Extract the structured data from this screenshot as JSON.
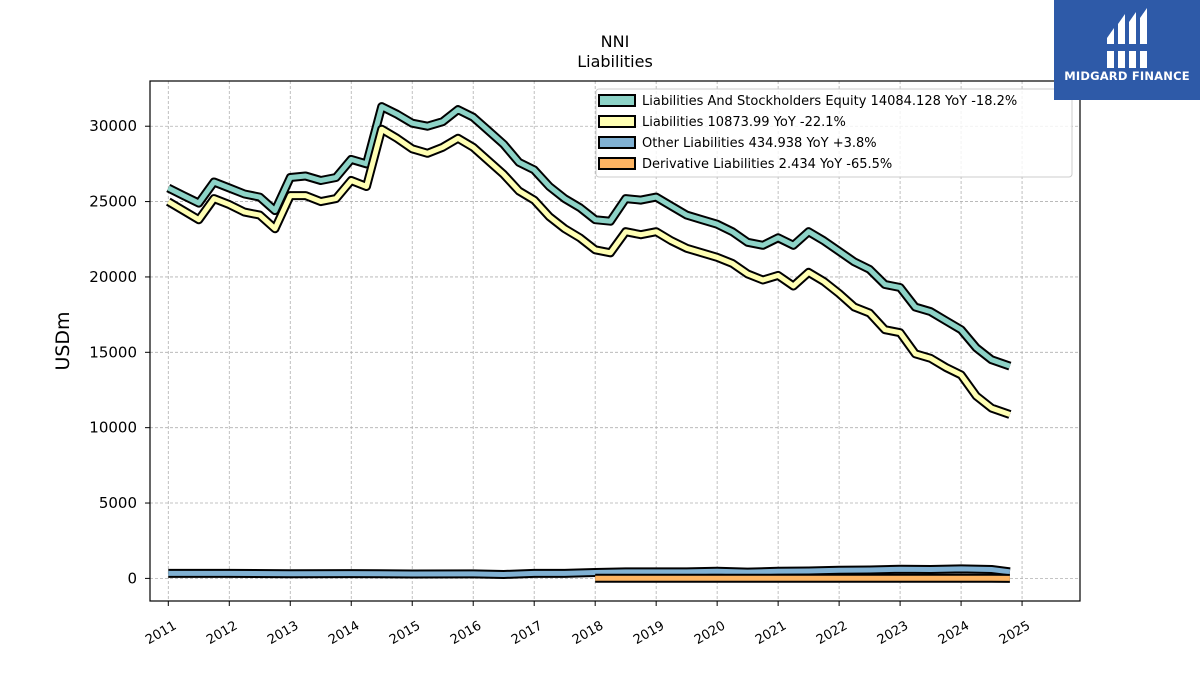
{
  "chart_data": {
    "type": "line",
    "title": "NNI",
    "subtitle": "Liabilities",
    "ylabel": "USDm",
    "xlabel": "",
    "ylim": [
      -1500,
      33000
    ],
    "xlim": [
      2010.7,
      2025.95
    ],
    "yticks": [
      0,
      5000,
      10000,
      15000,
      20000,
      25000,
      30000
    ],
    "yticklabels": [
      "0",
      "5000",
      "10000",
      "15000",
      "20000",
      "25000",
      "30000"
    ],
    "xticks": [
      2011,
      2012,
      2013,
      2014,
      2015,
      2016,
      2017,
      2018,
      2019,
      2020,
      2021,
      2022,
      2023,
      2024,
      2025
    ],
    "xticklabels": [
      "2011",
      "2012",
      "2013",
      "2014",
      "2015",
      "2016",
      "2017",
      "2018",
      "2019",
      "2020",
      "2021",
      "2022",
      "2023",
      "2024",
      "2025"
    ],
    "grid": true,
    "legend_position": "top-right",
    "series": [
      {
        "name": "Liabilities And Stockholders Equity",
        "legend": "Liabilities And Stockholders Equity  14084.128 YoY -18.2%",
        "color": "#8dd3c7",
        "x": [
          2011.0,
          2011.25,
          2011.5,
          2011.75,
          2012.0,
          2012.25,
          2012.5,
          2012.75,
          2013.0,
          2013.25,
          2013.5,
          2013.75,
          2014.0,
          2014.25,
          2014.5,
          2014.75,
          2015.0,
          2015.25,
          2015.5,
          2015.75,
          2016.0,
          2016.25,
          2016.5,
          2016.75,
          2017.0,
          2017.25,
          2017.5,
          2017.75,
          2018.0,
          2018.25,
          2018.5,
          2018.75,
          2019.0,
          2019.25,
          2019.5,
          2019.75,
          2020.0,
          2020.25,
          2020.5,
          2020.75,
          2021.0,
          2021.25,
          2021.5,
          2021.75,
          2022.0,
          2022.25,
          2022.5,
          2022.75,
          2023.0,
          2023.25,
          2023.5,
          2023.75,
          2024.0,
          2024.25,
          2024.5,
          2024.8
        ],
        "values": [
          25900,
          25400,
          24900,
          26300,
          25900,
          25500,
          25300,
          24400,
          26600,
          26700,
          26400,
          26600,
          27800,
          27500,
          31300,
          30800,
          30200,
          30000,
          30300,
          31100,
          30600,
          29700,
          28800,
          27600,
          27100,
          26000,
          25200,
          24600,
          23800,
          23700,
          25200,
          25100,
          25300,
          24700,
          24100,
          23800,
          23500,
          23000,
          22300,
          22100,
          22600,
          22100,
          23000,
          22400,
          21700,
          21000,
          20500,
          19500,
          19300,
          18000,
          17700,
          17100,
          16500,
          15300,
          14500,
          14084
        ]
      },
      {
        "name": "Liabilities",
        "legend": "Liabilities  10873.99 YoY -22.1%",
        "color": "#ffffb3",
        "x": [
          2011.0,
          2011.25,
          2011.5,
          2011.75,
          2012.0,
          2012.25,
          2012.5,
          2012.75,
          2013.0,
          2013.25,
          2013.5,
          2013.75,
          2014.0,
          2014.25,
          2014.5,
          2014.75,
          2015.0,
          2015.25,
          2015.5,
          2015.75,
          2016.0,
          2016.25,
          2016.5,
          2016.75,
          2017.0,
          2017.25,
          2017.5,
          2017.75,
          2018.0,
          2018.25,
          2018.5,
          2018.75,
          2019.0,
          2019.25,
          2019.5,
          2019.75,
          2020.0,
          2020.25,
          2020.5,
          2020.75,
          2021.0,
          2021.25,
          2021.5,
          2021.75,
          2022.0,
          2022.25,
          2022.5,
          2022.75,
          2023.0,
          2023.25,
          2023.5,
          2023.75,
          2024.0,
          2024.25,
          2024.5,
          2024.8
        ],
        "values": [
          25000,
          24400,
          23800,
          25200,
          24800,
          24300,
          24100,
          23200,
          25400,
          25400,
          25000,
          25200,
          26400,
          26000,
          29800,
          29200,
          28500,
          28200,
          28600,
          29200,
          28600,
          27700,
          26800,
          25700,
          25100,
          24000,
          23200,
          22600,
          21800,
          21600,
          23000,
          22800,
          23000,
          22400,
          21900,
          21600,
          21300,
          20900,
          20200,
          19800,
          20100,
          19400,
          20300,
          19700,
          18900,
          18000,
          17600,
          16500,
          16300,
          14900,
          14600,
          14000,
          13500,
          12100,
          11300,
          10874
        ]
      },
      {
        "name": "Other Liabilities",
        "legend": "Other Liabilities  434.938 YoY +3.8%",
        "color": "#80b1d3",
        "x": [
          2011.0,
          2012.0,
          2013.0,
          2014.0,
          2015.0,
          2016.0,
          2016.5,
          2017.0,
          2017.5,
          2018.0,
          2018.5,
          2019.0,
          2019.5,
          2020.0,
          2020.5,
          2021.0,
          2021.5,
          2022.0,
          2022.5,
          2023.0,
          2023.5,
          2024.0,
          2024.5,
          2024.8
        ],
        "values": [
          330,
          330,
          310,
          320,
          290,
          300,
          260,
          330,
          330,
          390,
          430,
          430,
          430,
          470,
          420,
          470,
          490,
          540,
          560,
          610,
          590,
          630,
          590,
          435
        ]
      },
      {
        "name": "Derivative Liabilities",
        "legend": "Derivative Liabilities  2.434 YoY -65.5%",
        "color": "#fdb462",
        "x": [
          2018.0,
          2018.5,
          2019.0,
          2019.5,
          2020.0,
          2020.5,
          2021.0,
          2021.5,
          2022.0,
          2022.5,
          2023.0,
          2023.5,
          2024.0,
          2024.5,
          2024.8
        ],
        "values": [
          8,
          8,
          7,
          7,
          6,
          6,
          6,
          6,
          5,
          5,
          5,
          4,
          4,
          3,
          2.434
        ]
      }
    ]
  },
  "logo": {
    "text": "MIDGARD FINANCE",
    "background": "#2e5aa8"
  }
}
